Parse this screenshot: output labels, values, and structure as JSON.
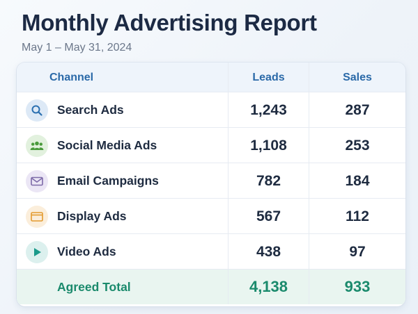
{
  "report": {
    "title": "Monthly Advertising Report",
    "date_range": "May 1 – May 31, 2024"
  },
  "table": {
    "columns": [
      "Channel",
      "Leads",
      "Sales"
    ],
    "rows": [
      {
        "channel": "Search Ads",
        "leads": "1,243",
        "sales": "287",
        "icon": "search-icon",
        "icon_color": "#2a6fb0"
      },
      {
        "channel": "Social Media Ads",
        "leads": "1,108",
        "sales": "253",
        "icon": "people-icon",
        "icon_color": "#4a9a3c"
      },
      {
        "channel": "Email Campaigns",
        "leads": "782",
        "sales": "184",
        "icon": "envelope-icon",
        "icon_color": "#7d6aa8"
      },
      {
        "channel": "Display Ads",
        "leads": "567",
        "sales": "112",
        "icon": "browser-window-icon",
        "icon_color": "#e39a2e"
      },
      {
        "channel": "Video Ads",
        "leads": "438",
        "sales": "97",
        "icon": "play-icon",
        "icon_color": "#1a9a8a"
      }
    ],
    "total": {
      "label": "Agreed Total",
      "leads": "4,138",
      "sales": "933"
    }
  },
  "colors": {
    "header_text": "#2a69a8",
    "total_text": "#1a8a6c",
    "total_background": "#e9f5f0"
  }
}
